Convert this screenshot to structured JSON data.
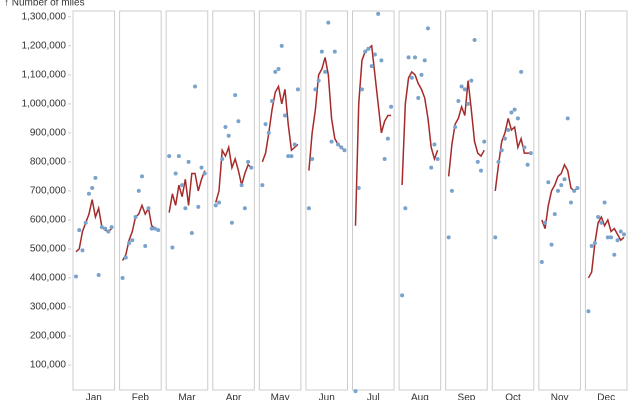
{
  "chart_data": {
    "type": "cycle",
    "y_label": "↑ Number of miles",
    "categories": [
      "Jan",
      "Feb",
      "Mar",
      "Apr",
      "May",
      "Jun",
      "Jul",
      "Aug",
      "Sep",
      "Oct",
      "Nov",
      "Dec"
    ],
    "ylim": [
      0,
      1320000
    ],
    "yticks": [
      {
        "value": 100000,
        "label": "100,000"
      },
      {
        "value": 200000,
        "label": "200,000"
      },
      {
        "value": 300000,
        "label": "300,000"
      },
      {
        "value": 400000,
        "label": "400,000"
      },
      {
        "value": 500000,
        "label": "500,000"
      },
      {
        "value": 600000,
        "label": "600,000"
      },
      {
        "value": 700000,
        "label": "700,000"
      },
      {
        "value": 800000,
        "label": "800,000"
      },
      {
        "value": 900000,
        "label": "900,000"
      },
      {
        "value": 1000000,
        "label": "1,000,000"
      },
      {
        "value": 1100000,
        "label": "1,100,000"
      },
      {
        "value": 1200000,
        "label": "1,200,000"
      },
      {
        "value": 1300000,
        "label": "1,300,000"
      }
    ],
    "series": [
      {
        "color": "#79a3cc",
        "values": [
          [
            405000,
            565000,
            495000,
            590000,
            690000,
            710000,
            745000,
            410000,
            575000,
            570000,
            560000,
            575000
          ],
          [
            400000,
            470000,
            520000,
            530000,
            610000,
            700000,
            750000,
            510000,
            640000,
            570000,
            570000,
            565000
          ],
          [
            820000,
            505000,
            760000,
            820000,
            720000,
            640000,
            800000,
            555000,
            1060000,
            645000,
            780000,
            760000
          ],
          [
            650000,
            660000,
            810000,
            920000,
            890000,
            590000,
            1030000,
            940000,
            720000,
            640000,
            800000,
            780000
          ],
          [
            720000,
            930000,
            900000,
            1010000,
            1110000,
            1120000,
            1200000,
            960000,
            820000,
            820000,
            860000,
            1050000
          ],
          [
            640000,
            810000,
            1050000,
            1080000,
            1180000,
            1110000,
            1280000,
            870000,
            1180000,
            860000,
            850000,
            840000
          ],
          [
            10000,
            710000,
            1050000,
            1180000,
            1190000,
            1130000,
            1170000,
            1310000,
            1150000,
            810000,
            880000,
            990000
          ],
          [
            340000,
            640000,
            1160000,
            1090000,
            1160000,
            1020000,
            1100000,
            1150000,
            1260000,
            780000,
            860000,
            810000
          ],
          [
            540000,
            700000,
            920000,
            1010000,
            1060000,
            1050000,
            1000000,
            1080000,
            1220000,
            800000,
            770000,
            870000
          ],
          [
            540000,
            800000,
            840000,
            880000,
            910000,
            970000,
            980000,
            950000,
            1110000,
            850000,
            790000,
            830000
          ],
          [
            455000,
            590000,
            730000,
            515000,
            620000,
            700000,
            720000,
            740000,
            950000,
            660000,
            700000,
            710000
          ],
          [
            285000,
            510000,
            520000,
            610000,
            590000,
            660000,
            540000,
            540000,
            480000,
            530000,
            560000,
            550000
          ]
        ]
      },
      {
        "color": "#a52a2a",
        "values": [
          [
            490000,
            500000,
            560000,
            590000,
            620000,
            670000,
            610000,
            640000,
            575000,
            565000,
            560000,
            570000
          ],
          [
            460000,
            480000,
            530000,
            560000,
            610000,
            620000,
            650000,
            620000,
            640000,
            580000,
            570000,
            565000
          ],
          [
            625000,
            690000,
            650000,
            720000,
            680000,
            740000,
            650000,
            760000,
            760000,
            700000,
            740000,
            770000
          ],
          [
            660000,
            700000,
            840000,
            820000,
            850000,
            780000,
            810000,
            770000,
            720000,
            760000,
            790000,
            780000
          ],
          [
            800000,
            830000,
            900000,
            980000,
            1040000,
            1060000,
            1000000,
            1050000,
            930000,
            840000,
            850000,
            860000
          ],
          [
            770000,
            900000,
            980000,
            1100000,
            1120000,
            1160000,
            1100000,
            950000,
            880000,
            860000,
            850000,
            840000
          ],
          [
            580000,
            1000000,
            1150000,
            1180000,
            1190000,
            1200000,
            1100000,
            1000000,
            900000,
            940000,
            960000,
            960000
          ],
          [
            720000,
            1000000,
            1090000,
            1110000,
            1100000,
            1070000,
            1050000,
            1020000,
            950000,
            850000,
            810000,
            840000
          ],
          [
            750000,
            860000,
            930000,
            950000,
            990000,
            960000,
            1080000,
            980000,
            870000,
            830000,
            820000,
            840000
          ],
          [
            700000,
            790000,
            870000,
            900000,
            950000,
            910000,
            920000,
            850000,
            880000,
            830000,
            830000,
            830000
          ],
          [
            600000,
            570000,
            650000,
            700000,
            720000,
            750000,
            760000,
            790000,
            770000,
            710000,
            700000,
            710000
          ],
          [
            400000,
            420000,
            520000,
            590000,
            610000,
            580000,
            600000,
            560000,
            570000,
            550000,
            530000,
            540000
          ]
        ]
      }
    ]
  }
}
